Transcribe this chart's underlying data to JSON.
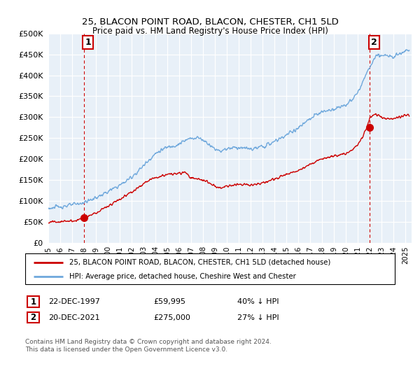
{
  "title": "25, BLACON POINT ROAD, BLACON, CHESTER, CH1 5LD",
  "subtitle": "Price paid vs. HM Land Registry's House Price Index (HPI)",
  "ytick_vals": [
    0,
    50000,
    100000,
    150000,
    200000,
    250000,
    300000,
    350000,
    400000,
    450000,
    500000
  ],
  "ylim": [
    0,
    500000
  ],
  "xlim_start": 1995.0,
  "xlim_end": 2025.5,
  "hpi_color": "#6fa8dc",
  "price_color": "#cc0000",
  "marker1_date": 1997.97,
  "marker1_price": 59995,
  "marker1_label": "1",
  "marker2_date": 2021.97,
  "marker2_price": 275000,
  "marker2_label": "2",
  "legend_line1": "25, BLACON POINT ROAD, BLACON, CHESTER, CH1 5LD (detached house)",
  "legend_line2": "HPI: Average price, detached house, Cheshire West and Chester",
  "footer": "Contains HM Land Registry data © Crown copyright and database right 2024.\nThis data is licensed under the Open Government Licence v3.0.",
  "background_color": "#ffffff",
  "grid_color": "#d0d8e8",
  "hpi_points": [
    [
      1995.0,
      83000
    ],
    [
      1995.5,
      84500
    ],
    [
      1996.0,
      87000
    ],
    [
      1996.5,
      89000
    ],
    [
      1997.0,
      91000
    ],
    [
      1997.5,
      93000
    ],
    [
      1998.0,
      97000
    ],
    [
      1998.5,
      102000
    ],
    [
      1999.0,
      108000
    ],
    [
      1999.5,
      115000
    ],
    [
      2000.0,
      122000
    ],
    [
      2000.5,
      130000
    ],
    [
      2001.0,
      138000
    ],
    [
      2001.5,
      147000
    ],
    [
      2002.0,
      158000
    ],
    [
      2002.5,
      170000
    ],
    [
      2003.0,
      185000
    ],
    [
      2003.5,
      200000
    ],
    [
      2004.0,
      213000
    ],
    [
      2004.5,
      222000
    ],
    [
      2005.0,
      228000
    ],
    [
      2005.5,
      232000
    ],
    [
      2006.0,
      237000
    ],
    [
      2006.5,
      244000
    ],
    [
      2007.0,
      250000
    ],
    [
      2007.5,
      252000
    ],
    [
      2008.0,
      246000
    ],
    [
      2008.5,
      236000
    ],
    [
      2009.0,
      224000
    ],
    [
      2009.5,
      220000
    ],
    [
      2010.0,
      225000
    ],
    [
      2010.5,
      228000
    ],
    [
      2011.0,
      228000
    ],
    [
      2011.5,
      226000
    ],
    [
      2012.0,
      224000
    ],
    [
      2012.5,
      226000
    ],
    [
      2013.0,
      230000
    ],
    [
      2013.5,
      235000
    ],
    [
      2014.0,
      242000
    ],
    [
      2014.5,
      250000
    ],
    [
      2015.0,
      258000
    ],
    [
      2015.5,
      266000
    ],
    [
      2016.0,
      275000
    ],
    [
      2016.5,
      285000
    ],
    [
      2017.0,
      296000
    ],
    [
      2017.5,
      306000
    ],
    [
      2018.0,
      312000
    ],
    [
      2018.5,
      316000
    ],
    [
      2019.0,
      320000
    ],
    [
      2019.5,
      325000
    ],
    [
      2020.0,
      330000
    ],
    [
      2020.5,
      340000
    ],
    [
      2021.0,
      360000
    ],
    [
      2021.5,
      390000
    ],
    [
      2022.0,
      420000
    ],
    [
      2022.5,
      445000
    ],
    [
      2023.0,
      448000
    ],
    [
      2023.5,
      445000
    ],
    [
      2024.0,
      448000
    ],
    [
      2024.5,
      452000
    ],
    [
      2025.0,
      460000
    ]
  ],
  "price_points": [
    [
      1995.0,
      50000
    ],
    [
      1995.5,
      50500
    ],
    [
      1996.0,
      51000
    ],
    [
      1996.5,
      52000
    ],
    [
      1997.0,
      53000
    ],
    [
      1997.5,
      55000
    ],
    [
      1998.0,
      60000
    ],
    [
      1998.5,
      65000
    ],
    [
      1999.0,
      72000
    ],
    [
      1999.5,
      80000
    ],
    [
      2000.0,
      88000
    ],
    [
      2000.5,
      97000
    ],
    [
      2001.0,
      105000
    ],
    [
      2001.5,
      113000
    ],
    [
      2002.0,
      122000
    ],
    [
      2002.5,
      132000
    ],
    [
      2003.0,
      142000
    ],
    [
      2003.5,
      150000
    ],
    [
      2004.0,
      156000
    ],
    [
      2004.5,
      160000
    ],
    [
      2005.0,
      163000
    ],
    [
      2005.5,
      165000
    ],
    [
      2006.0,
      166000
    ],
    [
      2006.5,
      168000
    ],
    [
      2007.0,
      155000
    ],
    [
      2007.5,
      153000
    ],
    [
      2008.0,
      150000
    ],
    [
      2008.5,
      143000
    ],
    [
      2009.0,
      135000
    ],
    [
      2009.5,
      132000
    ],
    [
      2010.0,
      135000
    ],
    [
      2010.5,
      138000
    ],
    [
      2011.0,
      140000
    ],
    [
      2011.5,
      140000
    ],
    [
      2012.0,
      138000
    ],
    [
      2012.5,
      140000
    ],
    [
      2013.0,
      143000
    ],
    [
      2013.5,
      148000
    ],
    [
      2014.0,
      153000
    ],
    [
      2014.5,
      158000
    ],
    [
      2015.0,
      163000
    ],
    [
      2015.5,
      168000
    ],
    [
      2016.0,
      174000
    ],
    [
      2016.5,
      180000
    ],
    [
      2017.0,
      188000
    ],
    [
      2017.5,
      195000
    ],
    [
      2018.0,
      200000
    ],
    [
      2018.5,
      204000
    ],
    [
      2019.0,
      207000
    ],
    [
      2019.5,
      210000
    ],
    [
      2020.0,
      213000
    ],
    [
      2020.5,
      220000
    ],
    [
      2021.0,
      235000
    ],
    [
      2021.5,
      258000
    ],
    [
      2022.0,
      300000
    ],
    [
      2022.5,
      308000
    ],
    [
      2023.0,
      300000
    ],
    [
      2023.5,
      295000
    ],
    [
      2024.0,
      298000
    ],
    [
      2024.5,
      300000
    ],
    [
      2025.0,
      305000
    ]
  ]
}
